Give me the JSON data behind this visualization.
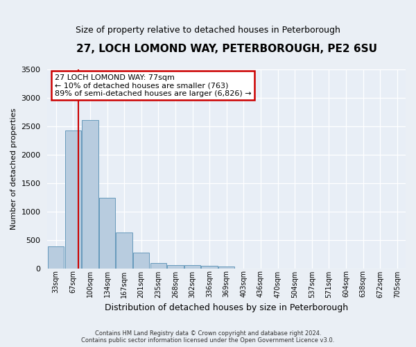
{
  "title": "27, LOCH LOMOND WAY, PETERBOROUGH, PE2 6SU",
  "subtitle": "Size of property relative to detached houses in Peterborough",
  "xlabel": "Distribution of detached houses by size in Peterborough",
  "ylabel": "Number of detached properties",
  "categories": [
    "33sqm",
    "67sqm",
    "100sqm",
    "134sqm",
    "167sqm",
    "201sqm",
    "235sqm",
    "268sqm",
    "302sqm",
    "336sqm",
    "369sqm",
    "403sqm",
    "436sqm",
    "470sqm",
    "504sqm",
    "537sqm",
    "571sqm",
    "604sqm",
    "638sqm",
    "672sqm",
    "705sqm"
  ],
  "values": [
    390,
    2420,
    2600,
    1240,
    630,
    270,
    90,
    60,
    60,
    45,
    30,
    0,
    0,
    0,
    0,
    0,
    0,
    0,
    0,
    0,
    0
  ],
  "bar_color": "#b8ccdf",
  "bar_edgecolor": "#6699bb",
  "vline_x_index": 1.3,
  "vline_color": "#cc0000",
  "ylim": [
    0,
    3500
  ],
  "yticks": [
    0,
    500,
    1000,
    1500,
    2000,
    2500,
    3000,
    3500
  ],
  "annotation_title": "27 LOCH LOMOND WAY: 77sqm",
  "annotation_line1": "← 10% of detached houses are smaller (763)",
  "annotation_line2": "89% of semi-detached houses are larger (6,826) →",
  "annotation_box_color": "#cc0000",
  "footer_line1": "Contains HM Land Registry data © Crown copyright and database right 2024.",
  "footer_line2": "Contains public sector information licensed under the Open Government Licence v3.0.",
  "bg_color": "#eaeff5",
  "plot_bg_color": "#e8eef6",
  "title_fontsize": 11,
  "subtitle_fontsize": 9,
  "ann_fontsize": 8,
  "ylabel_fontsize": 8,
  "xlabel_fontsize": 9
}
